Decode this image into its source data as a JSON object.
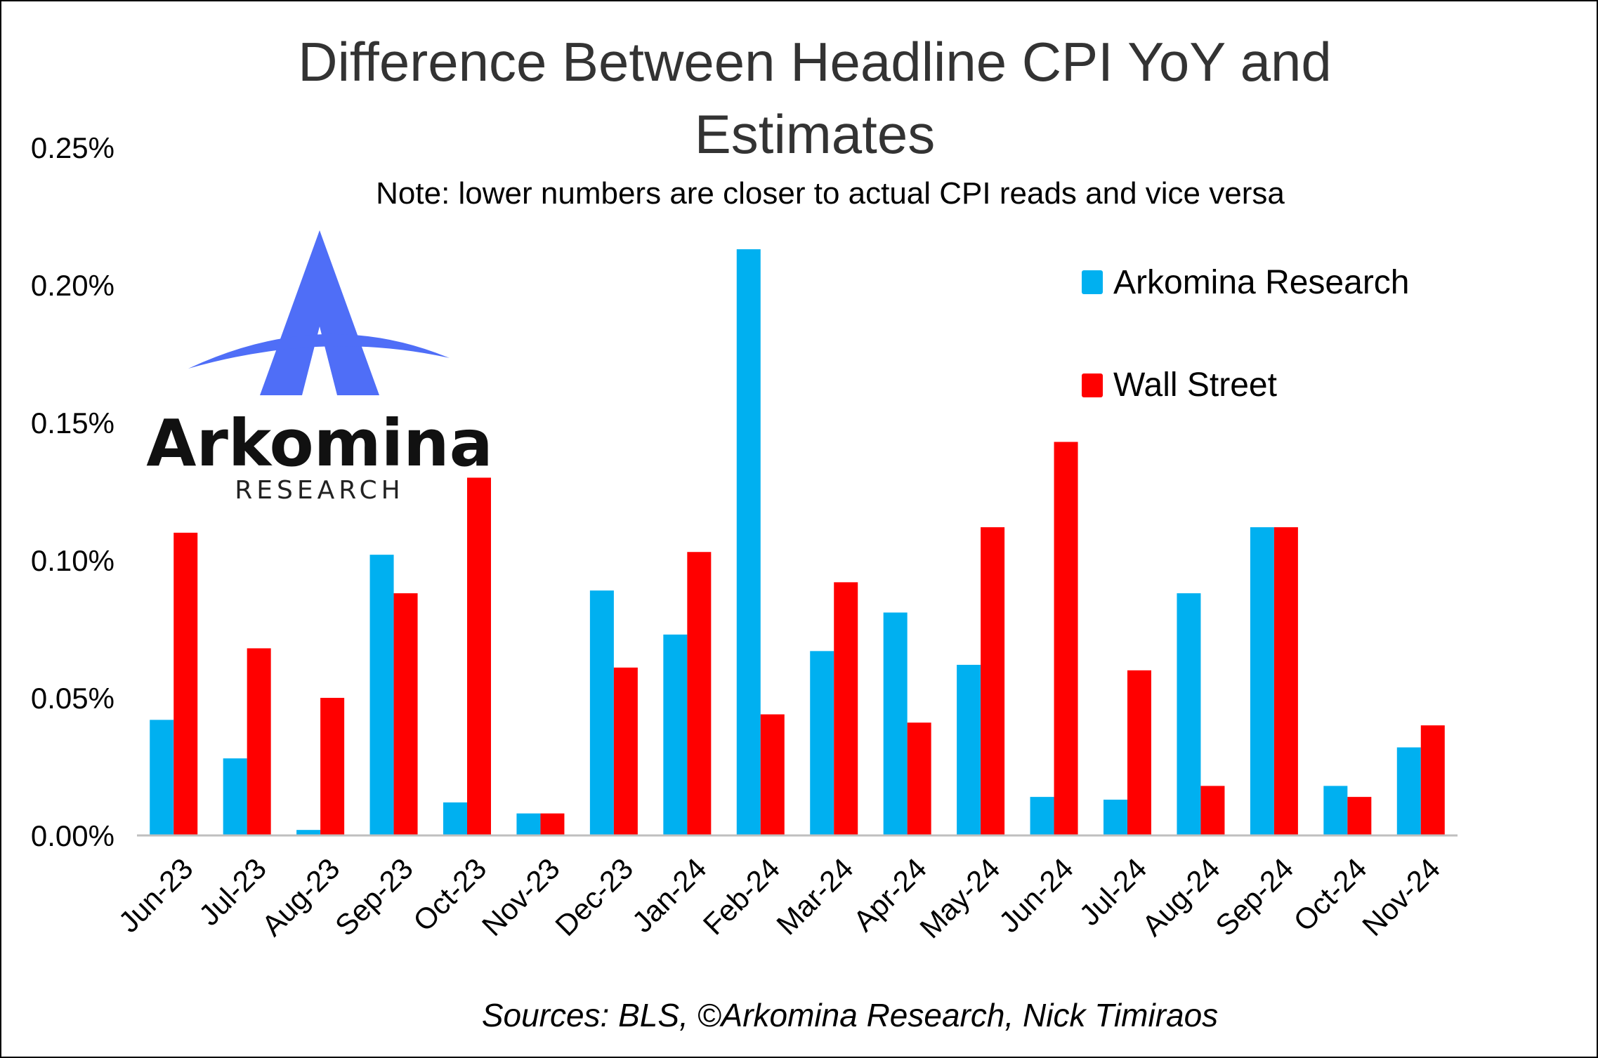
{
  "chart_data": {
    "type": "bar",
    "title_line1": "Difference Between Headline CPI YoY and",
    "title_line2": "Estimates",
    "subtitle": "Note: lower numbers are closer to actual CPI reads and vice versa",
    "source": "Sources: BLS, ©Arkomina Research, Nick Timiraos",
    "categories": [
      "Jun-23",
      "Jul-23",
      "Aug-23",
      "Sep-23",
      "Oct-23",
      "Nov-23",
      "Dec-23",
      "Jan-24",
      "Feb-24",
      "Mar-24",
      "Apr-24",
      "May-24",
      "Jun-24",
      "Jul-24",
      "Aug-24",
      "Sep-24",
      "Oct-24",
      "Nov-24"
    ],
    "series": [
      {
        "name": "Arkomina Research",
        "color": "#00b0f0",
        "values": [
          0.042,
          0.028,
          0.002,
          0.102,
          0.012,
          0.008,
          0.089,
          0.073,
          0.213,
          0.067,
          0.081,
          0.062,
          0.014,
          0.013,
          0.088,
          0.112,
          0.018,
          0.032
        ]
      },
      {
        "name": "Wall Street",
        "color": "#ff0000",
        "values": [
          0.11,
          0.068,
          0.05,
          0.088,
          0.13,
          0.008,
          0.061,
          0.103,
          0.044,
          0.092,
          0.041,
          0.112,
          0.143,
          0.06,
          0.018,
          0.112,
          0.014,
          0.04
        ]
      }
    ],
    "yticks": [
      "0.00%",
      "0.05%",
      "0.10%",
      "0.15%",
      "0.20%",
      "0.25%"
    ],
    "ylim": [
      0,
      0.25
    ],
    "grid": false,
    "legend_position": "top-right"
  },
  "logo": {
    "name": "Arkomina",
    "tagline": "RESEARCH",
    "color": "#4f6ef7"
  }
}
